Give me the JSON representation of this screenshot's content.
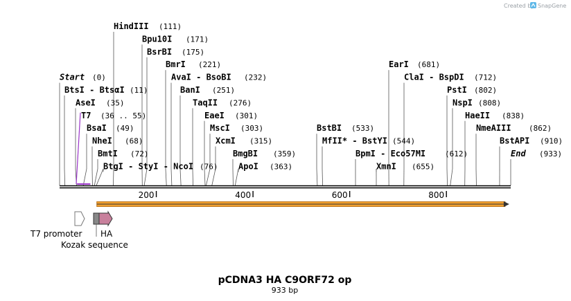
{
  "credit": {
    "prefix": "Created by",
    "brand": "SnapGene"
  },
  "title": "pCDNA3 HA C9ORF72 op",
  "subtitle": "933 bp",
  "sequence_length": 933,
  "ruler": {
    "ticks": [
      200,
      400,
      600,
      800
    ]
  },
  "colors": {
    "backbone": "#000000",
    "orf_fill": "#f0a030",
    "orf_edge": "#c07820",
    "t7_site": "#9a34c8",
    "ha_fill": "#c8809c",
    "kozak_fill": "#888888",
    "promoter_fill": "#ffffff"
  },
  "sites": [
    {
      "name": "HindIII",
      "pos": "(111)",
      "bp": 111,
      "row": 0
    },
    {
      "name": "Bpu10I",
      "pos": "(171)",
      "bp": 171,
      "row": 1
    },
    {
      "name": "BsrBI",
      "pos": "(175)",
      "bp": 175,
      "row": 2
    },
    {
      "name": "BmrI",
      "pos": "(221)",
      "bp": 221,
      "row": 3
    },
    {
      "name": "AvaI - BsoBI",
      "pos": "(232)",
      "bp": 232,
      "row": 4
    },
    {
      "name": "BanI",
      "pos": "(251)",
      "bp": 251,
      "row": 5
    },
    {
      "name": "TaqII",
      "pos": "(276)",
      "bp": 276,
      "row": 6
    },
    {
      "name": "EaeI",
      "pos": "(301)",
      "bp": 301,
      "row": 7
    },
    {
      "name": "MscI",
      "pos": "(303)",
      "bp": 303,
      "row": 8
    },
    {
      "name": "XcmI",
      "pos": "(315)",
      "bp": 315,
      "row": 9
    },
    {
      "name": "BmgBI",
      "pos": "(359)",
      "bp": 359,
      "row": 10
    },
    {
      "name": "ApoI",
      "pos": "(363)",
      "bp": 363,
      "row": 11
    },
    {
      "name": "Start",
      "pos": "(0)",
      "bp": 0,
      "row": 4,
      "italic": true
    },
    {
      "name": "BtsI - BtsαI",
      "pos": "(11)",
      "bp": 11,
      "row": 5
    },
    {
      "name": "AseI",
      "pos": "(35)",
      "bp": 35,
      "row": 6
    },
    {
      "name": "BsaI",
      "pos": "(49)",
      "bp": 49,
      "row": 8
    },
    {
      "name": "NheI",
      "pos": "(68)",
      "bp": 68,
      "row": 9
    },
    {
      "name": "BmtI",
      "pos": "(72)",
      "bp": 72,
      "row": 10
    },
    {
      "name": "BtgI - StyI - NcoI",
      "pos": "(76)",
      "bp": 76,
      "row": 11
    },
    {
      "name": "EarI",
      "pos": "(681)",
      "bp": 681,
      "row": 3
    },
    {
      "name": "ClaI - BspDI",
      "pos": "(712)",
      "bp": 712,
      "row": 4
    },
    {
      "name": "PstI",
      "pos": "(802)",
      "bp": 802,
      "row": 5
    },
    {
      "name": "NspI",
      "pos": "(808)",
      "bp": 808,
      "row": 6
    },
    {
      "name": "HaeII",
      "pos": "(838)",
      "bp": 838,
      "row": 7
    },
    {
      "name": "NmeAIII",
      "pos": "(862)",
      "bp": 862,
      "row": 8
    },
    {
      "name": "BstAPI",
      "pos": "(910)",
      "bp": 910,
      "row": 9
    },
    {
      "name": "End",
      "pos": "(933)",
      "bp": 933,
      "row": 10,
      "italic": true
    },
    {
      "name": "BstBI",
      "pos": "(533)",
      "bp": 533,
      "row": 8
    },
    {
      "name": "MfII* - BstYI",
      "pos": "(544)",
      "bp": 544,
      "row": 9
    },
    {
      "name": "BpmI - Eco57MI",
      "pos": "(612)",
      "bp": 612,
      "row": 10
    },
    {
      "name": "XmnI",
      "pos": "(655)",
      "bp": 655,
      "row": 11
    }
  ],
  "t7_site": {
    "label": "T7",
    "range": "(36 .. 55)",
    "start_bp": 36,
    "end_bp": 55
  },
  "orf": {
    "start_bp": 77,
    "end_bp": 930
  },
  "features": [
    {
      "label": "T7 promoter",
      "start_bp": 36,
      "end_bp": 55,
      "kind": "promoter"
    },
    {
      "label": "Kozak sequence",
      "start_bp": 72,
      "end_bp": 82,
      "kind": "kozak"
    },
    {
      "label": "HA",
      "start_bp": 82,
      "end_bp": 109,
      "kind": "tag"
    }
  ]
}
